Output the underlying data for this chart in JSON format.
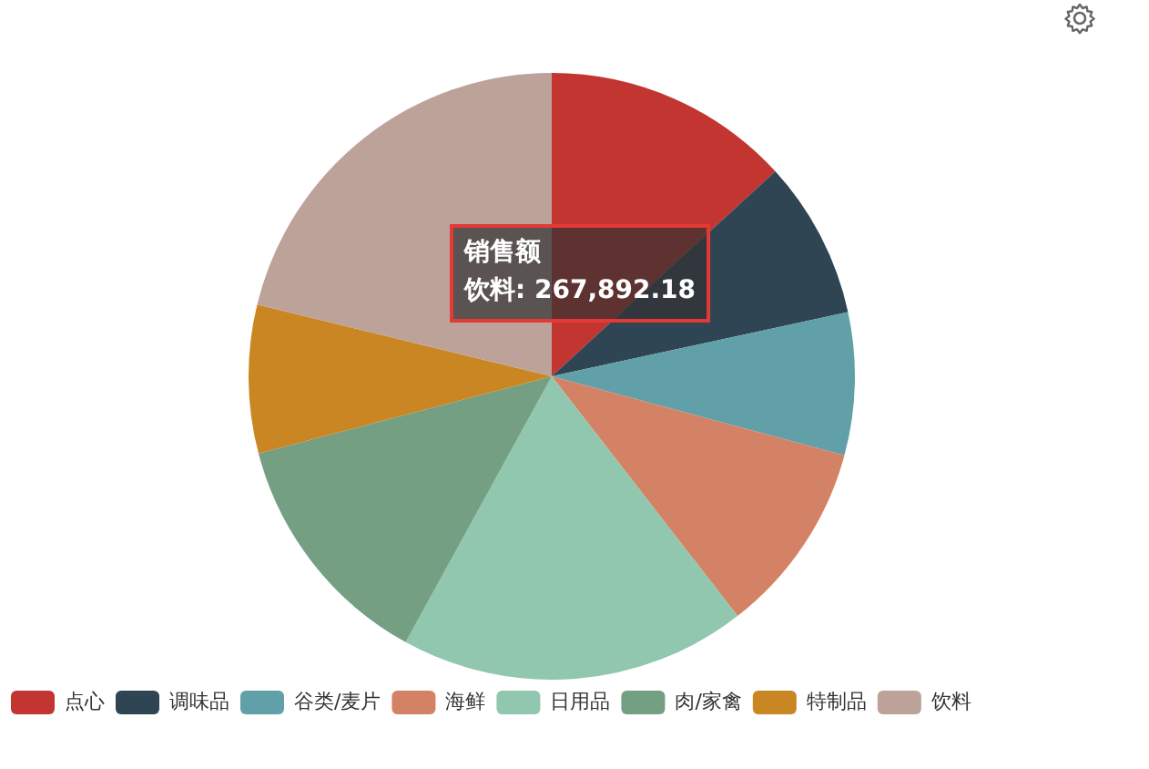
{
  "chart_data": {
    "type": "pie",
    "categories": [
      "点心",
      "调味品",
      "谷类/麦片",
      "海鲜",
      "日用品",
      "肉/家禽",
      "特制品",
      "饮料"
    ],
    "values": [
      13.2,
      8.4,
      7.6,
      10.3,
      18.5,
      12.9,
      7.9,
      21.2
    ],
    "colors": [
      "#c23531",
      "#2f4554",
      "#61a0a8",
      "#d48265",
      "#91c7ae",
      "#749f83",
      "#ca8622",
      "#bda29a"
    ],
    "legend": "bottom left",
    "annotations": [
      "销售额",
      "饮料: 267,892.18"
    ]
  }
}
